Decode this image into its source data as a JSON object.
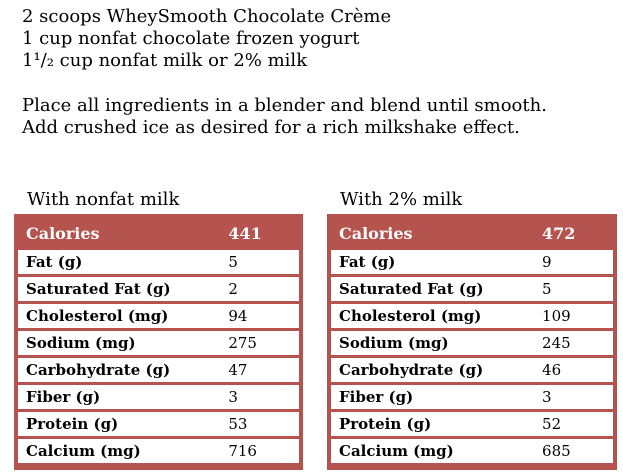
{
  "ingredients": {
    "lines": [
      "2 scoops WheySmooth Chocolate Crème",
      "1 cup nonfat chocolate frozen yogurt",
      "1¹/₂ cup nonfat milk or 2% milk"
    ]
  },
  "instructions": {
    "lines": [
      "Place all ingredients in a blender and blend until smooth.",
      "Add crushed ice as desired for a rich milkshake effect."
    ]
  },
  "tables": [
    {
      "title": "With nonfat milk",
      "header": {
        "label": "Calories",
        "value": "441"
      },
      "rows": [
        {
          "label": "Fat (g)",
          "value": "5"
        },
        {
          "label": "Saturated Fat (g)",
          "value": "2"
        },
        {
          "label": "Cholesterol (mg)",
          "value": "94"
        },
        {
          "label": "Sodium (mg)",
          "value": "275"
        },
        {
          "label": "Carbohydrate (g)",
          "value": "47"
        },
        {
          "label": "Fiber (g)",
          "value": "3"
        },
        {
          "label": "Protein (g)",
          "value": "53"
        },
        {
          "label": "Calcium (mg)",
          "value": "716"
        }
      ]
    },
    {
      "title": "With 2% milk",
      "header": {
        "label": "Calories",
        "value": "472"
      },
      "rows": [
        {
          "label": "Fat (g)",
          "value": "9"
        },
        {
          "label": "Saturated Fat (g)",
          "value": "5"
        },
        {
          "label": "Cholesterol (mg)",
          "value": "109"
        },
        {
          "label": "Sodium (mg)",
          "value": "245"
        },
        {
          "label": "Carbohydrate (g)",
          "value": "46"
        },
        {
          "label": "Fiber (g)",
          "value": "3"
        },
        {
          "label": "Protein (g)",
          "value": "52"
        },
        {
          "label": "Calcium (mg)",
          "value": "685"
        }
      ]
    }
  ],
  "colors": {
    "accent": "#b5534f",
    "header_text": "#ffffff",
    "body_text": "#000000"
  }
}
